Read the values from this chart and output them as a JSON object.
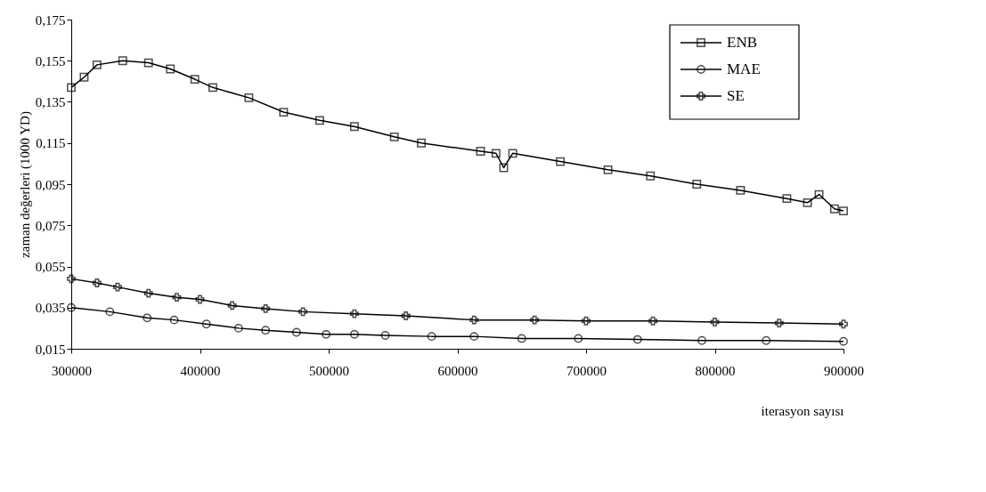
{
  "chart_data": {
    "type": "line",
    "xlabel": "iterasyon sayısı",
    "ylabel": "zaman değerleri (1000 YD)",
    "xlim": [
      300000,
      900000
    ],
    "xticks": [
      300000,
      400000,
      500000,
      600000,
      700000,
      800000,
      900000
    ],
    "ylim": [
      0.015,
      0.175
    ],
    "yticks": [
      {
        "value": 0.015,
        "label": "0,015"
      },
      {
        "value": 0.035,
        "label": "0,035"
      },
      {
        "value": 0.055,
        "label": "0,055"
      },
      {
        "value": 0.075,
        "label": "0,075"
      },
      {
        "value": 0.095,
        "label": "0,095"
      },
      {
        "value": 0.115,
        "label": "0,115"
      },
      {
        "value": 0.135,
        "label": "0,135"
      },
      {
        "value": 0.155,
        "label": "0,155"
      },
      {
        "value": 0.175,
        "label": "0,175"
      }
    ],
    "grid": false,
    "legend": "top right",
    "line_style": "solid",
    "series": [
      {
        "name": "ENB",
        "color": "#000000",
        "marker": "square",
        "x": [
          300000,
          310000,
          320000,
          340000,
          360000,
          377000,
          396000,
          410000,
          438000,
          465000,
          493000,
          520000,
          551000,
          572000,
          618000,
          630000,
          636000,
          643000,
          680000,
          717000,
          750000,
          786000,
          820000,
          856000,
          872000,
          881000,
          893000,
          900000
        ],
        "values": [
          0.142,
          0.147,
          0.153,
          0.155,
          0.154,
          0.151,
          0.146,
          0.142,
          0.137,
          0.13,
          0.126,
          0.123,
          0.118,
          0.115,
          0.111,
          0.11,
          0.103,
          0.11,
          0.106,
          0.102,
          0.099,
          0.095,
          0.092,
          0.088,
          0.086,
          0.09,
          0.083,
          0.082
        ]
      },
      {
        "name": "MAE",
        "color": "#000000",
        "marker": "circle",
        "x": [
          300000,
          330000,
          359000,
          380000,
          405000,
          430000,
          451000,
          475000,
          498000,
          520000,
          544000,
          580000,
          613000,
          650000,
          694000,
          740000,
          790000,
          840000,
          900000
        ],
        "values": [
          0.035,
          0.033,
          0.03,
          0.029,
          0.027,
          0.025,
          0.024,
          0.023,
          0.022,
          0.022,
          0.0215,
          0.021,
          0.021,
          0.02,
          0.02,
          0.0195,
          0.019,
          0.019,
          0.0186
        ]
      },
      {
        "name": "SE",
        "color": "#000000",
        "marker": "cross",
        "x": [
          300000,
          320000,
          336000,
          360000,
          382000,
          400000,
          425000,
          451000,
          480000,
          520000,
          560000,
          613000,
          660000,
          700000,
          752000,
          800000,
          850000,
          900000
        ],
        "values": [
          0.049,
          0.047,
          0.045,
          0.042,
          0.04,
          0.039,
          0.036,
          0.0345,
          0.033,
          0.032,
          0.031,
          0.029,
          0.029,
          0.0285,
          0.0285,
          0.028,
          0.0275,
          0.027
        ]
      }
    ]
  }
}
